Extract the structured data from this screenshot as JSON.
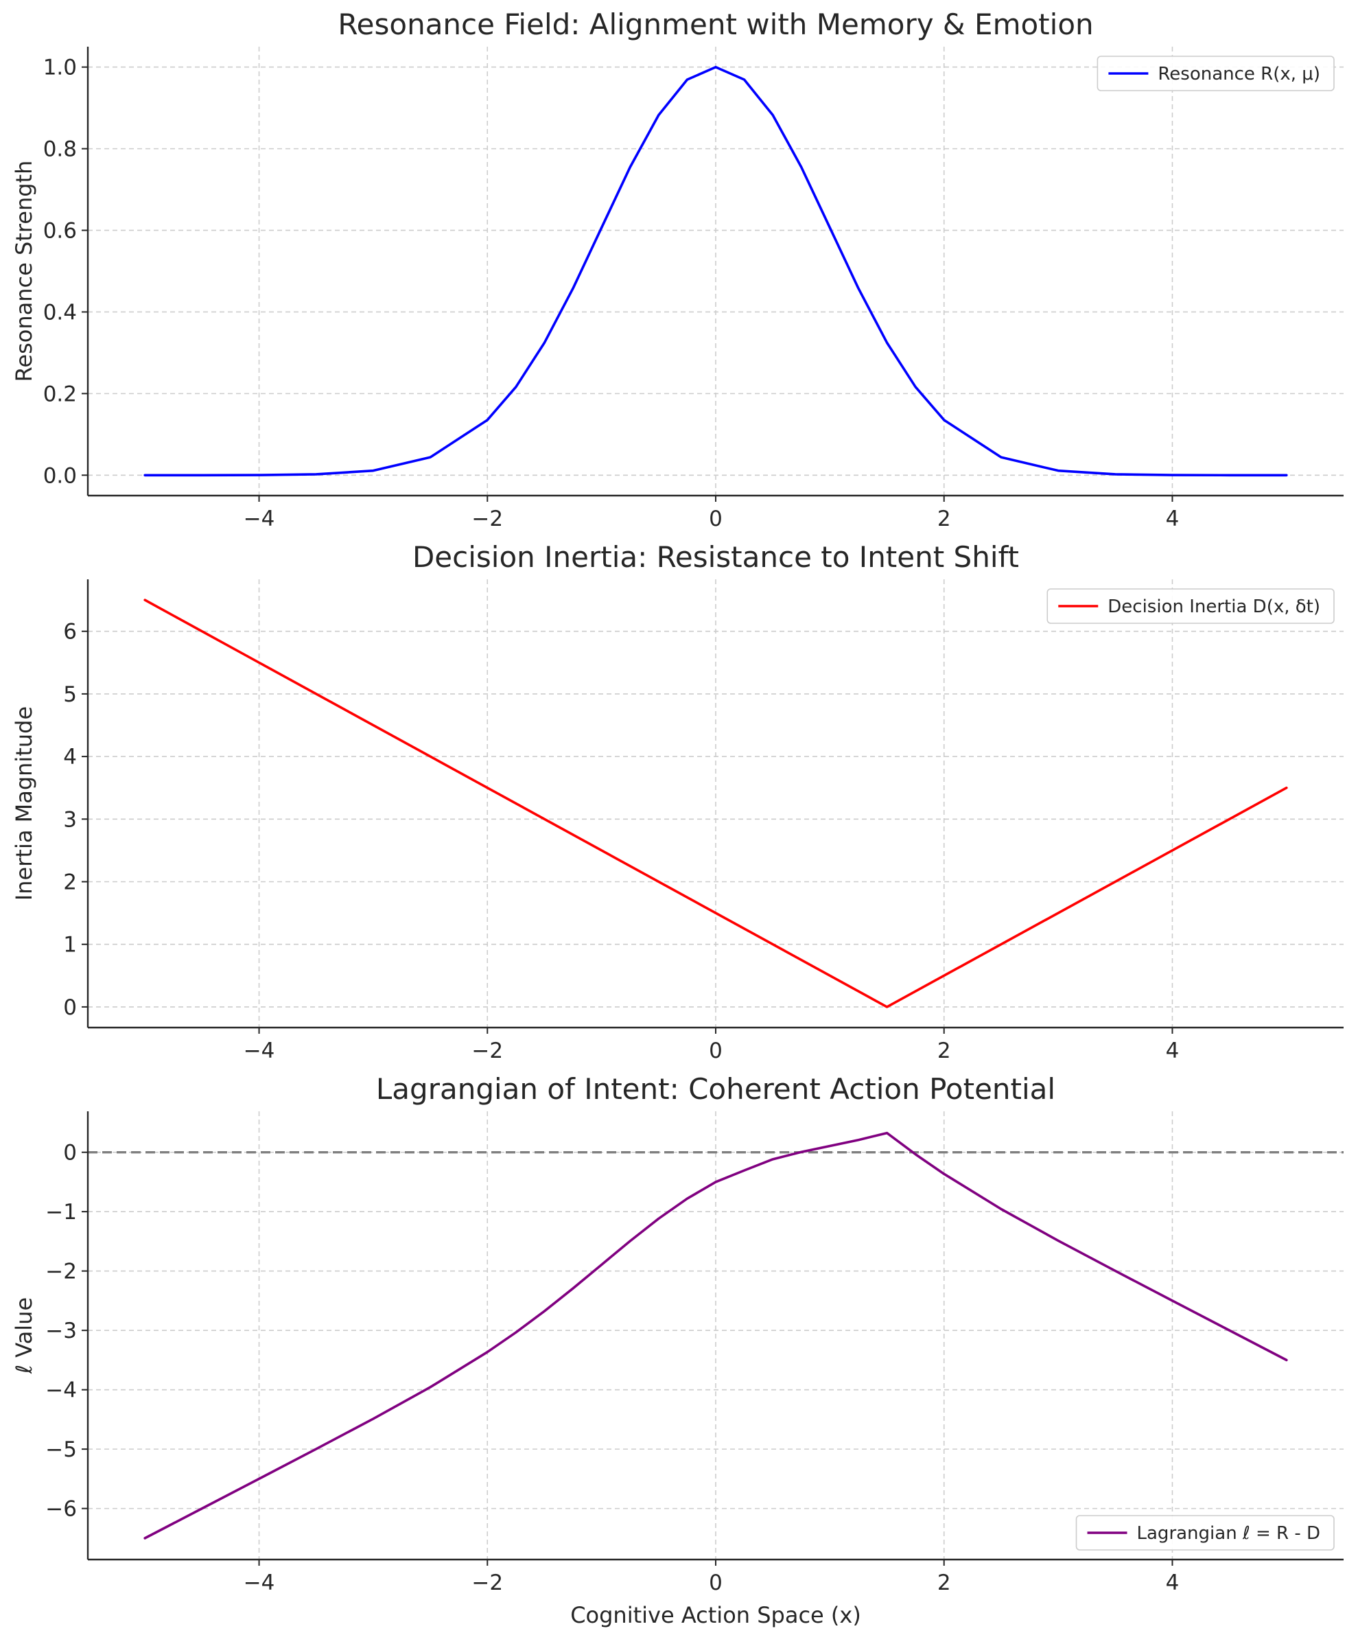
{
  "chart_data": [
    {
      "type": "line",
      "title": "Resonance Field: Alignment with Memory & Emotion",
      "xlabel": "",
      "ylabel": "Resonance Strength",
      "xlim": [
        -5.5,
        5.5
      ],
      "ylim": [
        -0.05,
        1.05
      ],
      "xticks": [
        -4,
        -2,
        0,
        2,
        4
      ],
      "yticks": [
        0.0,
        0.2,
        0.4,
        0.6,
        0.8,
        1.0
      ],
      "xtick_labels": [
        "−4",
        "−2",
        "0",
        "2",
        "4"
      ],
      "ytick_labels": [
        "0.0",
        "0.2",
        "0.4",
        "0.6",
        "0.8",
        "1.0"
      ],
      "grid": true,
      "legend_position": "top-right",
      "series": [
        {
          "name": "Resonance R(x, μ)",
          "color": "#0000ff",
          "x": [
            -5,
            -4.5,
            -4,
            -3.5,
            -3,
            -2.5,
            -2,
            -1.75,
            -1.5,
            -1.25,
            -1,
            -0.75,
            -0.5,
            -0.25,
            0,
            0.25,
            0.5,
            0.75,
            1,
            1.25,
            1.5,
            1.75,
            2,
            2.5,
            3,
            3.5,
            4,
            4.5,
            5
          ],
          "y": [
            0.0,
            0.0,
            0.0003,
            0.0022,
            0.0111,
            0.0439,
            0.1353,
            0.2163,
            0.3247,
            0.4578,
            0.6065,
            0.7548,
            0.8825,
            0.9692,
            1.0,
            0.9692,
            0.8825,
            0.7548,
            0.6065,
            0.4578,
            0.3247,
            0.2163,
            0.1353,
            0.0439,
            0.0111,
            0.0022,
            0.0003,
            0.0,
            0.0
          ]
        }
      ]
    },
    {
      "type": "line",
      "title": "Decision Inertia: Resistance to Intent Shift",
      "xlabel": "",
      "ylabel": "Inertia Magnitude",
      "xlim": [
        -5.5,
        5.5
      ],
      "ylim": [
        -0.33,
        6.83
      ],
      "xticks": [
        -4,
        -2,
        0,
        2,
        4
      ],
      "yticks": [
        0,
        1,
        2,
        3,
        4,
        5,
        6
      ],
      "xtick_labels": [
        "−4",
        "−2",
        "0",
        "2",
        "4"
      ],
      "ytick_labels": [
        "0",
        "1",
        "2",
        "3",
        "4",
        "5",
        "6"
      ],
      "grid": true,
      "legend_position": "top-right",
      "series": [
        {
          "name": "Decision Inertia D(x, δt)",
          "color": "#ff0000",
          "x": [
            -5,
            1.5,
            5
          ],
          "y": [
            6.5,
            0,
            3.5
          ]
        }
      ]
    },
    {
      "type": "line",
      "title": "Lagrangian of Intent: Coherent Action Potential",
      "xlabel": "Cognitive Action Space (x)",
      "ylabel": "ℓ Value",
      "xlim": [
        -5.5,
        5.5
      ],
      "ylim": [
        -6.86,
        0.69
      ],
      "xticks": [
        -4,
        -2,
        0,
        2,
        4
      ],
      "yticks": [
        -6,
        -5,
        -4,
        -3,
        -2,
        -1,
        0
      ],
      "xtick_labels": [
        "−4",
        "−2",
        "0",
        "2",
        "4"
      ],
      "ytick_labels": [
        "−6",
        "−5",
        "−4",
        "−3",
        "−2",
        "−1",
        "0"
      ],
      "grid": true,
      "legend_position": "bottom-right",
      "reference_line": {
        "y": 0,
        "style": "dashed",
        "color": "#808080"
      },
      "series": [
        {
          "name": "Lagrangian ℓ = R - D",
          "color": "#800080",
          "x": [
            -5,
            -4.5,
            -4,
            -3.5,
            -3,
            -2.5,
            -2,
            -1.75,
            -1.5,
            -1.25,
            -1,
            -0.75,
            -0.5,
            -0.25,
            0,
            0.25,
            0.5,
            0.75,
            1,
            1.25,
            1.5,
            1.75,
            2,
            2.5,
            3,
            3.5,
            4,
            4.5,
            5
          ],
          "y": [
            -6.5,
            -6.0,
            -5.4997,
            -4.9978,
            -4.4889,
            -3.9561,
            -3.3647,
            -3.0337,
            -2.6753,
            -2.2922,
            -1.8935,
            -1.4952,
            -1.1175,
            -0.7808,
            -0.5,
            -0.3058,
            -0.1175,
            0.0048,
            0.1065,
            0.2078,
            0.3247,
            -0.0337,
            -0.3647,
            -0.9561,
            -1.4889,
            -1.9978,
            -2.4997,
            -3.0,
            -3.5
          ]
        }
      ]
    }
  ]
}
